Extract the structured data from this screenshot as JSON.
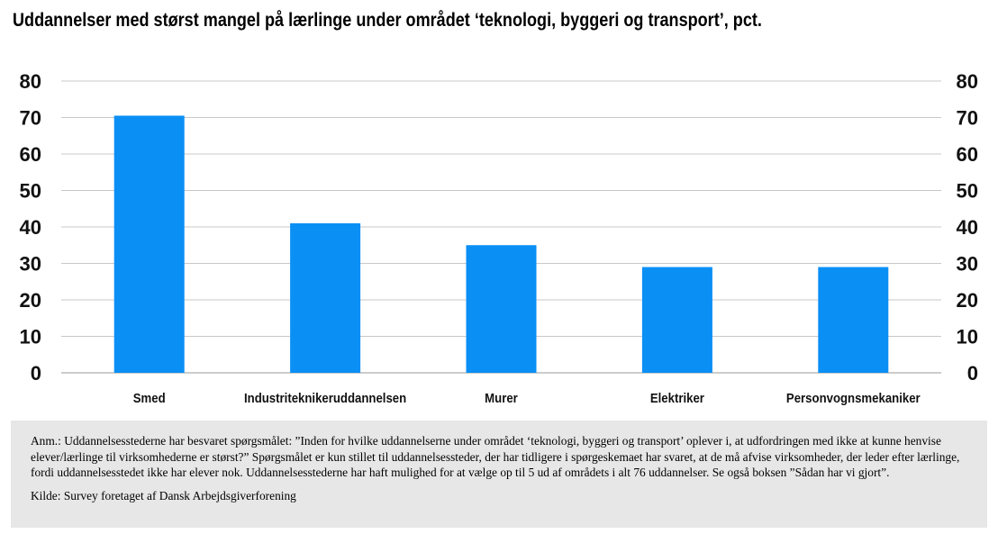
{
  "chart_data": {
    "type": "bar",
    "title": "Uddannelser med størst mangel på lærlinge under området ‘teknologi, byggeri og transport’, pct.",
    "categories": [
      "Smed",
      "Industriteknikeruddannelsen",
      "Murer",
      "Elektriker",
      "Personvognsmekaniker"
    ],
    "values": [
      70.5,
      41,
      35,
      29,
      29
    ],
    "ylim": [
      0,
      80
    ],
    "yticks": [
      0,
      10,
      20,
      30,
      40,
      50,
      60,
      70,
      80
    ],
    "axis_labels_both_sides": true,
    "grid": true,
    "bar_color": "#0a8ff5",
    "xlabel": "",
    "ylabel": ""
  },
  "notes": {
    "annotation": "Anm.: Uddannelsesstederne har besvaret spørgsmålet: ”Inden for hvilke uddannelserne under området ‘teknologi, byggeri og transport’ oplever i, at udfordringen med ikke at kunne henvise elever/lærlinge til virksomhederne er størst?” Spørgsmålet er kun stillet til uddannelsessteder, der har tidligere i spørgeskemaet har svaret, at de må afvise virksomheder, der leder efter lærlinge, fordi uddannelsesstedet ikke har elever nok. Uddannelsesstederne har haft mulighed for at vælge op til 5 ud af områdets i alt 76 uddannelser. Se også boksen ”Sådan har vi gjort”.",
    "source": "Kilde: Survey foretaget af Dansk Arbejdsgiverforening"
  },
  "colors": {
    "bar": "#0a8ff5",
    "grid": "#c8c8c8",
    "note_background": "#e7e7e7"
  }
}
